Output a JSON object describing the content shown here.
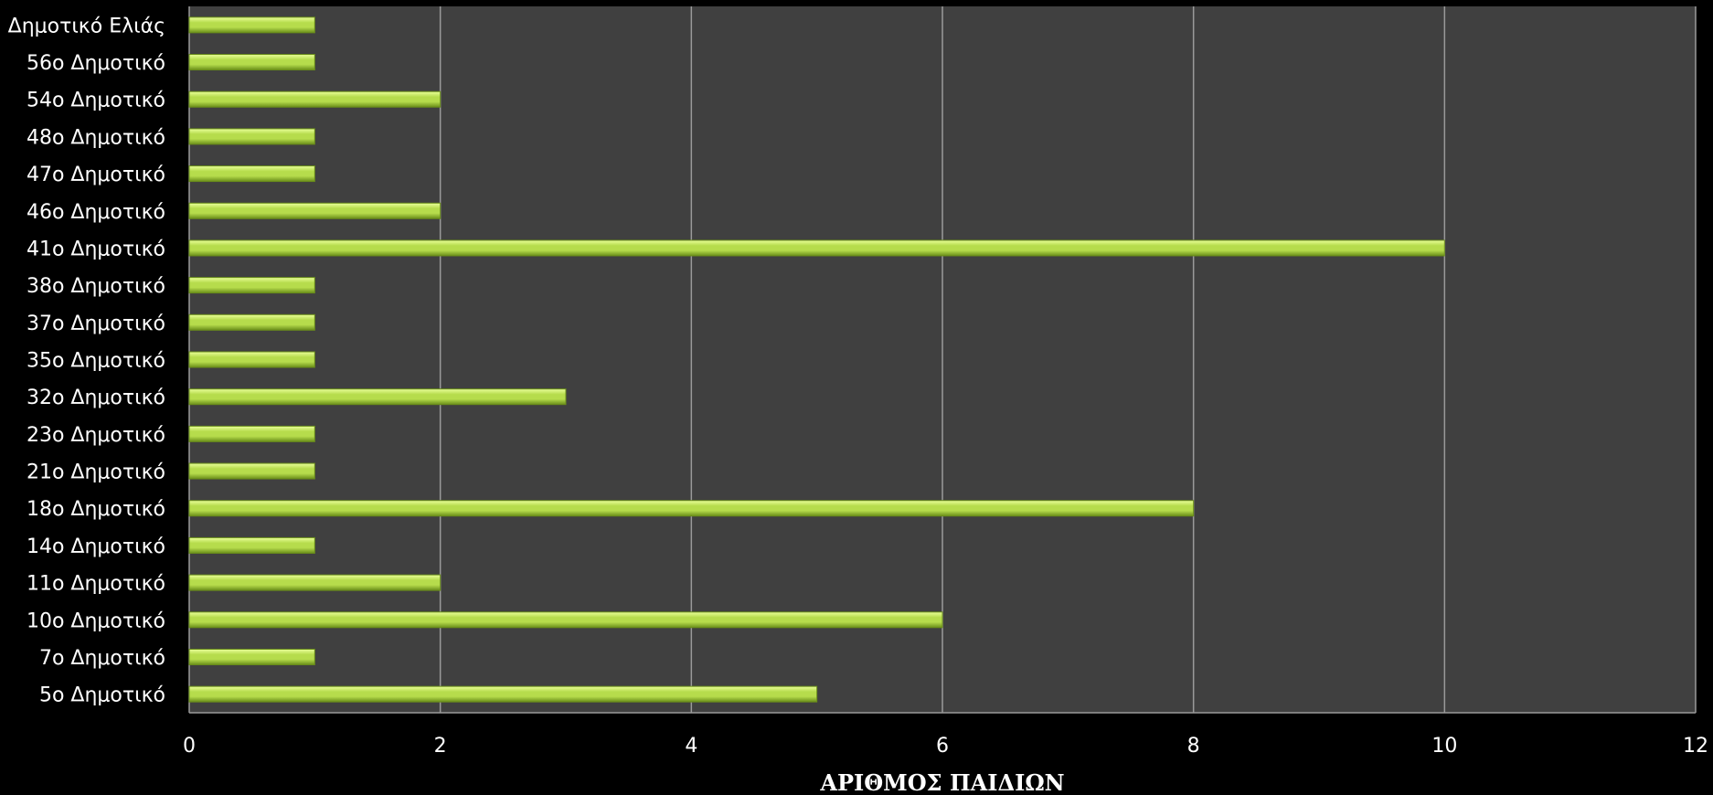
{
  "chart_data": {
    "type": "bar",
    "orientation": "horizontal",
    "categories": [
      "Δημοτικό Ελιάς",
      "56ο Δημοτικό",
      "54ο Δημοτικό",
      "48ο Δημοτικό",
      "47ο Δημοτικό",
      "46ο Δημοτικό",
      "41ο Δημοτικό",
      "38ο Δημοτικό",
      "37ο Δημοτικό",
      "35ο Δημοτικό",
      "32ο Δημοτικό",
      "23ο Δημοτικό",
      "21ο Δημοτικό",
      "18ο Δημοτικό",
      "14ο Δημοτικό",
      "11ο Δημοτικό",
      "10ο Δημοτικό",
      "7ο Δημοτικό",
      "5ο Δημοτικό"
    ],
    "values": [
      1,
      1,
      2,
      1,
      1,
      2,
      10,
      1,
      1,
      1,
      3,
      1,
      1,
      8,
      1,
      2,
      6,
      1,
      5
    ],
    "xlabel": "ΑΡΙΘΜΟΣ ΠΑΙΔΙΩΝ",
    "ylabel": "",
    "xlim": [
      0,
      12
    ],
    "xticks": [
      0,
      2,
      4,
      6,
      8,
      10,
      12
    ],
    "grid": "vertical",
    "colors": {
      "page_background": "#000000",
      "plot_background": "#404040",
      "gridline": "#9a9a9a",
      "bar_light": "#eaff9a",
      "bar_mid": "#b6dc4c",
      "bar_dark": "#6a8e1a",
      "text": "#ffffff"
    }
  }
}
